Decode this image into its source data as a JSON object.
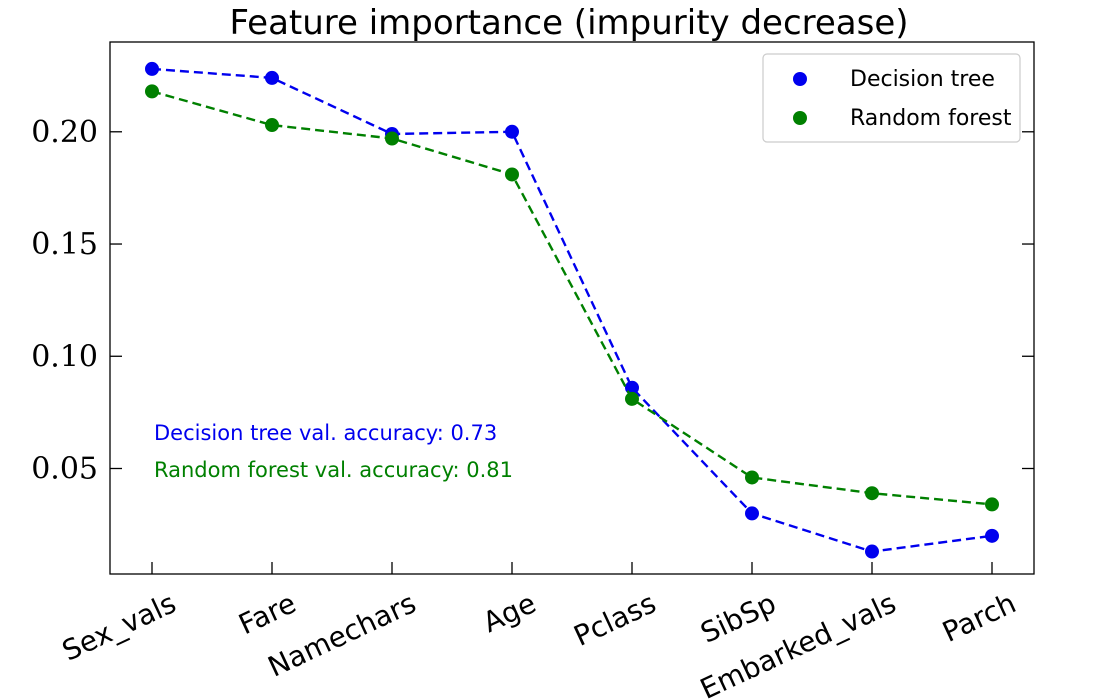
{
  "chart_data": {
    "type": "line",
    "title": "Feature importance (impurity decrease)",
    "xlabel": "",
    "ylabel": "",
    "categories": [
      "Sex_vals",
      "Fare",
      "Namechars",
      "Age",
      "Pclass",
      "SibSp",
      "Embarked_vals",
      "Parch"
    ],
    "ylim": [
      0.003,
      0.24
    ],
    "yticks": [
      0.05,
      0.1,
      0.15,
      0.2
    ],
    "ytick_labels": [
      "0.05",
      "0.10",
      "0.15",
      "0.20"
    ],
    "grid": false,
    "legend_position": "top-right",
    "series": [
      {
        "name": "Decision tree",
        "color": "#0000ee",
        "marker": "circle",
        "line_style": "dashed",
        "values": [
          0.228,
          0.224,
          0.199,
          0.2,
          0.086,
          0.03,
          0.013,
          0.02
        ]
      },
      {
        "name": "Random forest",
        "color": "#008000",
        "marker": "circle",
        "line_style": "dashed",
        "values": [
          0.218,
          0.203,
          0.197,
          0.181,
          0.081,
          0.046,
          0.039,
          0.034
        ]
      }
    ],
    "annotations": [
      {
        "text": "Decision tree val. accuracy: 0.73",
        "color": "#0000ee"
      },
      {
        "text": "Random forest val. accuracy: 0.81",
        "color": "#008000"
      }
    ]
  }
}
